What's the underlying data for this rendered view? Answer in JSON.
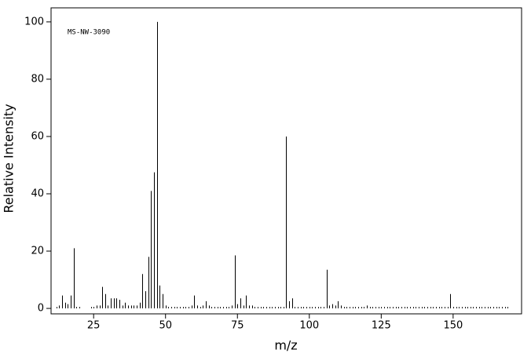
{
  "chart_data": {
    "type": "stem",
    "annotation": "MS-NW-3090",
    "x_label": "m/z",
    "y_label": "Relative Intensity",
    "color": "#000000",
    "xlim": [
      10.2,
      173.8
    ],
    "ylim": [
      -1.9,
      104.9
    ],
    "xticks": [
      25,
      50,
      75,
      100,
      125,
      150
    ],
    "yticks": [
      0,
      20,
      40,
      60,
      80,
      100
    ],
    "x": [
      12,
      13,
      14,
      15,
      16,
      17,
      18,
      19,
      20,
      24,
      25,
      26,
      27,
      28,
      29,
      30,
      31,
      32,
      33,
      34,
      35,
      36,
      37,
      38,
      39,
      40,
      41,
      42,
      43,
      44,
      45,
      46,
      47,
      48,
      49,
      50,
      51,
      52,
      53,
      54,
      55,
      56,
      57,
      58,
      59,
      60,
      61,
      62,
      63,
      64,
      65,
      66,
      67,
      68,
      69,
      70,
      71,
      72,
      73,
      74,
      75,
      76,
      77,
      78,
      79,
      80,
      81,
      82,
      83,
      84,
      85,
      86,
      87,
      88,
      89,
      90,
      91,
      92,
      93,
      94,
      95,
      96,
      97,
      98,
      99,
      100,
      101,
      102,
      103,
      104,
      105,
      106,
      107,
      108,
      109,
      110,
      111,
      112,
      113,
      114,
      115,
      116,
      117,
      118,
      119,
      120,
      121,
      122,
      123,
      124,
      125,
      126,
      127,
      128,
      129,
      130,
      131,
      132,
      133,
      134,
      135,
      136,
      137,
      138,
      139,
      140,
      141,
      142,
      143,
      144,
      145,
      146,
      147,
      148,
      149,
      150,
      151,
      152,
      153,
      154,
      155,
      156,
      157,
      158,
      159,
      160,
      161,
      162,
      163,
      164,
      165,
      166,
      167,
      168,
      169
    ],
    "values": [
      0.5,
      1,
      4.5,
      2,
      1.5,
      4.5,
      21,
      0.5,
      0.5,
      0.5,
      0.5,
      1,
      1,
      7.5,
      5,
      1,
      3.5,
      3.5,
      3.5,
      3,
      1,
      2,
      1,
      1,
      1,
      1,
      2,
      12,
      6,
      18,
      41,
      47.5,
      100,
      8,
      5,
      1,
      0.5,
      0.5,
      0.5,
      0.5,
      0.5,
      0.5,
      0.5,
      0.5,
      1,
      4.5,
      1,
      0.5,
      1,
      2.5,
      1,
      0.5,
      0.5,
      0.5,
      0.5,
      0.5,
      0.5,
      0.5,
      1,
      18.5,
      1.5,
      3.5,
      1,
      4.5,
      1,
      1,
      0.5,
      0.5,
      0.5,
      0.5,
      0.5,
      0.5,
      0.5,
      0.5,
      0.5,
      0.5,
      0.5,
      60,
      2.5,
      3.5,
      0.5,
      0.5,
      0.5,
      0.5,
      0.5,
      0.5,
      0.5,
      0.5,
      0.5,
      0.5,
      0.5,
      13.5,
      1,
      1.5,
      1,
      2.5,
      1,
      0.5,
      0.5,
      0.5,
      0.5,
      0.5,
      0.5,
      0.5,
      0.5,
      1,
      0.5,
      0.5,
      0.5,
      0.5,
      0.5,
      0.5,
      0.5,
      0.5,
      0.5,
      0.5,
      0.5,
      0.5,
      0.5,
      0.5,
      0.5,
      0.5,
      0.5,
      0.5,
      0.5,
      0.5,
      0.5,
      0.5,
      0.5,
      0.5,
      0.5,
      0.5,
      0.5,
      0.5,
      5,
      0.5,
      0.5,
      0.5,
      0.5,
      0.5,
      0.5,
      0.5,
      0.5,
      0.5,
      0.5,
      0.5,
      0.5,
      0.5,
      0.5,
      0.5,
      0.5,
      0.5,
      0.5,
      0.5,
      0.5
    ]
  }
}
